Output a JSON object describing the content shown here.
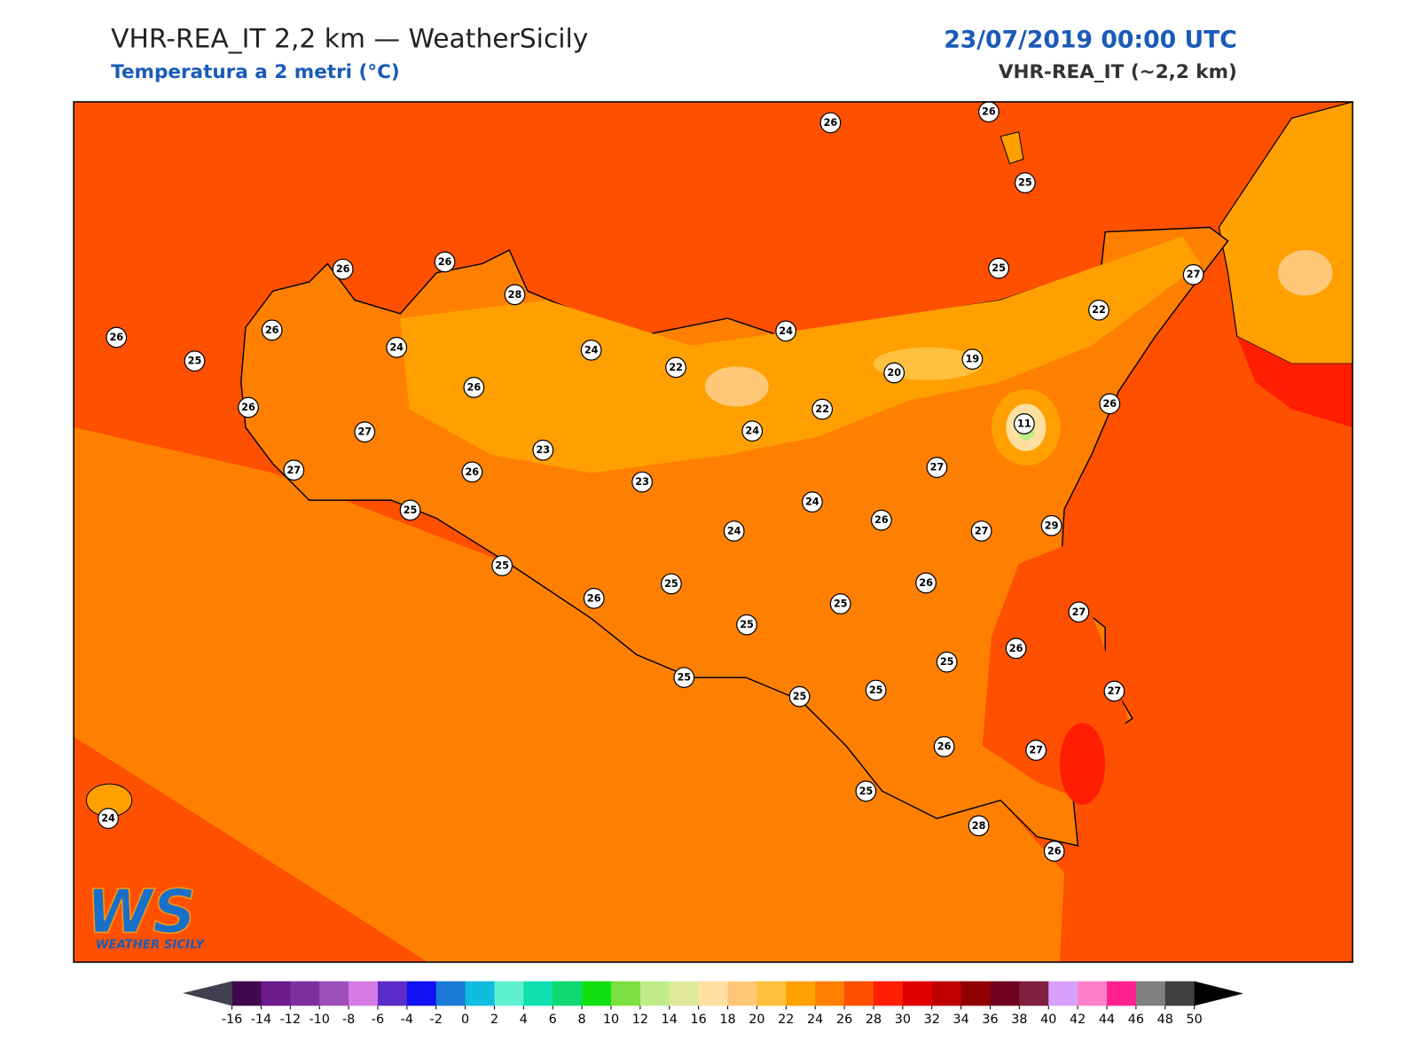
{
  "header": {
    "title": "VHR-REA_IT 2,2 km — WeatherSicily",
    "subtitle": "Temperatura a 2 metri (°C)",
    "date": "23/07/2019 00:00 UTC",
    "model": "VHR-REA_IT (~2,2 km)"
  },
  "map": {
    "stations": [
      26,
      26,
      25,
      26,
      26,
      28,
      26,
      25,
      26,
      24,
      24,
      24,
      25,
      27,
      22,
      22,
      20,
      19,
      26,
      26,
      22,
      11,
      26,
      27,
      24,
      23,
      27,
      26,
      23,
      27,
      24,
      25,
      26,
      24,
      27,
      29,
      25,
      25,
      26,
      26,
      25,
      25,
      27,
      25,
      26,
      25,
      25,
      25,
      27,
      26,
      27,
      25,
      28,
      26,
      24
    ]
  },
  "logo": {
    "mark": "WS",
    "name": "WEATHER SICILY"
  },
  "colorbar": {
    "ticks": [
      -16,
      -14,
      -12,
      -10,
      -8,
      -6,
      -4,
      -2,
      0,
      2,
      4,
      6,
      8,
      10,
      12,
      14,
      16,
      18,
      20,
      22,
      24,
      26,
      28,
      30,
      32,
      34,
      36,
      38,
      40,
      42,
      44,
      46,
      48,
      50
    ],
    "colors": [
      "#3f0a4d",
      "#6a1a8a",
      "#7d2f9e",
      "#9b4fb8",
      "#d67ae6",
      "#5b2bc7",
      "#1010f0",
      "#1a7ad6",
      "#10bde0",
      "#5ff0d0",
      "#10e0b0",
      "#10d870",
      "#10e010",
      "#7ae040",
      "#c0ec8a",
      "#e0e89a",
      "#ffe0a0",
      "#ffc878",
      "#ffc040",
      "#ffa000",
      "#ff8000",
      "#ff5000",
      "#ff1e00",
      "#e00000",
      "#c00000",
      "#900000",
      "#700020",
      "#802040",
      "#d8a0ff",
      "#ff80c8",
      "#ff2090",
      "#808080",
      "#404040"
    ]
  }
}
